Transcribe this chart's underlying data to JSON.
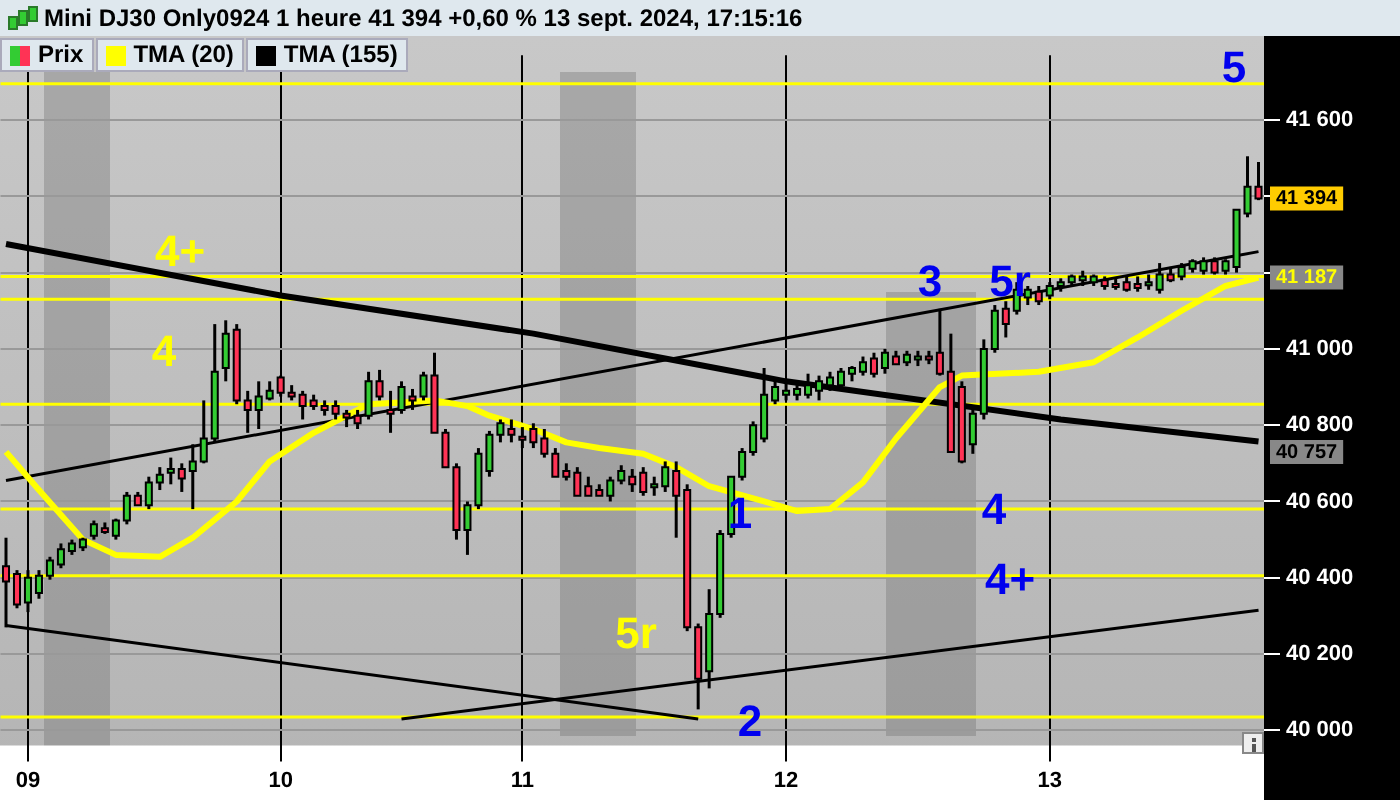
{
  "chart_data": {
    "type": "candlestick",
    "title": "Mini DJ30 Only0924 1 heure 41 394 +0,60 % 13 sept. 2024, 17:15:16",
    "categories": [
      null,
      null,
      "09",
      null,
      null,
      null,
      null,
      null,
      null,
      null,
      null,
      null,
      null,
      null,
      null,
      null,
      null,
      null,
      null,
      null,
      null,
      null,
      null,
      null,
      null,
      "10",
      null,
      null,
      null,
      null,
      null,
      null,
      null,
      null,
      null,
      null,
      null,
      null,
      null,
      null,
      null,
      null,
      null,
      null,
      null,
      null,
      null,
      "11",
      null,
      null,
      null,
      null,
      null,
      null,
      null,
      null,
      null,
      null,
      null,
      null,
      null,
      null,
      null,
      null,
      null,
      null,
      null,
      null,
      null,
      null,
      null,
      "12",
      null,
      null,
      null,
      null,
      null,
      null,
      null,
      null,
      null,
      null,
      null,
      null,
      null,
      null,
      null,
      null,
      null,
      null,
      null,
      null,
      null,
      null,
      null,
      "13",
      null,
      null,
      null,
      null,
      null,
      null,
      null,
      null,
      null,
      null,
      null,
      null,
      null,
      null,
      null,
      null,
      null,
      null,
      null
    ],
    "ylim": [
      39960,
      41770
    ],
    "yticks": [
      {
        "value": 40000,
        "label": "40 000"
      },
      {
        "value": 40200,
        "label": "40 200"
      },
      {
        "value": 40400,
        "label": "40 400"
      },
      {
        "value": 40600,
        "label": "40 600"
      },
      {
        "value": 40800,
        "label": "40 800"
      },
      {
        "value": 41000,
        "label": "41 000"
      },
      {
        "value": 41200,
        "label": null
      },
      {
        "value": 41400,
        "label": null
      },
      {
        "value": 41600,
        "label": "41 600"
      }
    ],
    "grid": true,
    "legend": "top left",
    "series": [
      {
        "name": "Prix",
        "ohlc": [
          [
            40430,
            40505,
            40270,
            40390
          ],
          [
            40410,
            40420,
            40320,
            40330
          ],
          [
            40335,
            40420,
            40310,
            40400
          ],
          [
            40360,
            40420,
            40345,
            40405
          ],
          [
            40405,
            40455,
            40395,
            40445
          ],
          [
            40435,
            40490,
            40425,
            40475
          ],
          [
            40470,
            40500,
            40460,
            40490
          ],
          [
            40480,
            40505,
            40470,
            40500
          ],
          [
            40510,
            40550,
            40500,
            40540
          ],
          [
            40530,
            40545,
            40515,
            40520
          ],
          [
            40510,
            40555,
            40500,
            40550
          ],
          [
            40550,
            40625,
            40540,
            40615
          ],
          [
            40615,
            40625,
            40590,
            40590
          ],
          [
            40590,
            40665,
            40580,
            40650
          ],
          [
            40650,
            40690,
            40630,
            40670
          ],
          [
            40675,
            40715,
            40645,
            40685
          ],
          [
            40685,
            40700,
            40625,
            40660
          ],
          [
            40680,
            40750,
            40580,
            40705
          ],
          [
            40705,
            40865,
            40700,
            40765
          ],
          [
            40765,
            41065,
            40755,
            40940
          ],
          [
            40950,
            41075,
            40915,
            41040
          ],
          [
            41050,
            41065,
            40855,
            40865
          ],
          [
            40865,
            40890,
            40780,
            40840
          ],
          [
            40840,
            40915,
            40790,
            40875
          ],
          [
            40870,
            40915,
            40865,
            40890
          ],
          [
            40925,
            40930,
            40875,
            40885
          ],
          [
            40885,
            40905,
            40865,
            40875
          ],
          [
            40880,
            40890,
            40815,
            40850
          ],
          [
            40865,
            40880,
            40840,
            40850
          ],
          [
            40850,
            40865,
            40825,
            40840
          ],
          [
            40850,
            40865,
            40815,
            40830
          ],
          [
            40830,
            40840,
            40795,
            40820
          ],
          [
            40825,
            40840,
            40790,
            40805
          ],
          [
            40825,
            40940,
            40815,
            40915
          ],
          [
            40915,
            40945,
            40865,
            40875
          ],
          [
            40840,
            40890,
            40780,
            40830
          ],
          [
            40840,
            40915,
            40830,
            40900
          ],
          [
            40875,
            40895,
            40840,
            40865
          ],
          [
            40875,
            40940,
            40865,
            40930
          ],
          [
            40930,
            40990,
            40780,
            40780
          ],
          [
            40780,
            40790,
            40690,
            40690
          ],
          [
            40690,
            40700,
            40500,
            40525
          ],
          [
            40525,
            40600,
            40460,
            40590
          ],
          [
            40590,
            40740,
            40580,
            40725
          ],
          [
            40680,
            40785,
            40665,
            40775
          ],
          [
            40775,
            40815,
            40755,
            40805
          ],
          [
            40790,
            40815,
            40755,
            40775
          ],
          [
            40765,
            40795,
            40740,
            40770
          ],
          [
            40790,
            40805,
            40740,
            40755
          ],
          [
            40765,
            40790,
            40715,
            40725
          ],
          [
            40725,
            40740,
            40665,
            40665
          ],
          [
            40680,
            40700,
            40655,
            40665
          ],
          [
            40675,
            40690,
            40615,
            40615
          ],
          [
            40640,
            40665,
            40615,
            40615
          ],
          [
            40630,
            40645,
            40615,
            40615
          ],
          [
            40615,
            40665,
            40600,
            40655
          ],
          [
            40655,
            40695,
            40645,
            40680
          ],
          [
            40665,
            40685,
            40625,
            40645
          ],
          [
            40675,
            40690,
            40615,
            40625
          ],
          [
            40640,
            40665,
            40615,
            40645
          ],
          [
            40640,
            40705,
            40625,
            40690
          ],
          [
            40680,
            40705,
            40505,
            40615
          ],
          [
            40630,
            40645,
            40260,
            40270
          ],
          [
            40270,
            40280,
            40055,
            40135
          ],
          [
            40155,
            40370,
            40110,
            40305
          ],
          [
            40305,
            40525,
            40295,
            40515
          ],
          [
            40515,
            40665,
            40505,
            40665
          ],
          [
            40665,
            40740,
            40655,
            40730
          ],
          [
            40730,
            40810,
            40720,
            40800
          ],
          [
            40765,
            40950,
            40755,
            40880
          ],
          [
            40865,
            40915,
            40855,
            40900
          ],
          [
            40880,
            40915,
            40865,
            40890
          ],
          [
            40880,
            40905,
            40865,
            40895
          ],
          [
            40880,
            40935,
            40870,
            40905
          ],
          [
            40890,
            40930,
            40865,
            40915
          ],
          [
            40905,
            40940,
            40890,
            40925
          ],
          [
            40905,
            40950,
            40895,
            40940
          ],
          [
            40935,
            40955,
            40915,
            40950
          ],
          [
            40940,
            40980,
            40930,
            40965
          ],
          [
            40975,
            40990,
            40925,
            40935
          ],
          [
            40950,
            41000,
            40935,
            40990
          ],
          [
            40980,
            40995,
            40960,
            40960
          ],
          [
            40965,
            40995,
            40955,
            40985
          ],
          [
            40975,
            40995,
            40955,
            40980
          ],
          [
            40980,
            40995,
            40960,
            40975
          ],
          [
            40990,
            41105,
            40930,
            40935
          ],
          [
            40940,
            41040,
            40730,
            40730
          ],
          [
            40900,
            40915,
            40700,
            40705
          ],
          [
            40750,
            40840,
            40725,
            40830
          ],
          [
            40830,
            41025,
            40815,
            41000
          ],
          [
            41000,
            41115,
            40990,
            41100
          ],
          [
            41105,
            41125,
            41030,
            41065
          ],
          [
            41100,
            41175,
            41090,
            41155
          ],
          [
            41135,
            41165,
            41115,
            41155
          ],
          [
            41150,
            41165,
            41115,
            41125
          ],
          [
            41140,
            41175,
            41130,
            41165
          ],
          [
            41165,
            41185,
            41150,
            41175
          ],
          [
            41175,
            41195,
            41165,
            41190
          ],
          [
            41180,
            41205,
            41165,
            41190
          ],
          [
            41175,
            41195,
            41165,
            41190
          ],
          [
            41180,
            41190,
            41155,
            41165
          ],
          [
            41170,
            41185,
            41155,
            41165
          ],
          [
            41175,
            41190,
            41150,
            41155
          ],
          [
            41170,
            41190,
            41150,
            41160
          ],
          [
            41170,
            41195,
            41155,
            41175
          ],
          [
            41155,
            41225,
            41145,
            41195
          ],
          [
            41195,
            41215,
            41175,
            41180
          ],
          [
            41190,
            41225,
            41180,
            41215
          ],
          [
            41210,
            41235,
            41200,
            41230
          ],
          [
            41205,
            41240,
            41195,
            41230
          ],
          [
            41230,
            41240,
            41195,
            41200
          ],
          [
            41205,
            41235,
            41195,
            41230
          ],
          [
            41215,
            41365,
            41200,
            41365
          ],
          [
            41355,
            41505,
            41345,
            41425
          ],
          [
            41425,
            41490,
            41390,
            41394
          ]
        ],
        "colors": [
          "#ff3355",
          "#ff3355",
          "#33cc33",
          "#33cc33",
          "#33cc33",
          "#33cc33",
          "#33cc33",
          "#33cc33",
          "#33cc33",
          "#ff3355",
          "#33cc33",
          "#33cc33",
          "#ff3355",
          "#33cc33",
          "#33cc33",
          "#33cc33",
          "#ff3355",
          "#33cc33",
          "#33cc33",
          "#33cc33",
          "#33cc33",
          "#ff3355",
          "#ff3355",
          "#33cc33",
          "#33cc33",
          "#ff3355",
          "#ff3355",
          "#ff3355",
          "#ff3355",
          "#ff3355",
          "#ff3355",
          "#ff3355",
          "#ff3355",
          "#33cc33",
          "#ff3355",
          "#ff3355",
          "#33cc33",
          "#ff3355",
          "#33cc33",
          "#ff3355",
          "#ff3355",
          "#ff3355",
          "#33cc33",
          "#33cc33",
          "#33cc33",
          "#33cc33",
          "#ff3355",
          "#ff3355",
          "#ff3355",
          "#ff3355",
          "#ff3355",
          "#ff3355",
          "#ff3355",
          "#ff3355",
          "#ff3355",
          "#33cc33",
          "#33cc33",
          "#ff3355",
          "#ff3355",
          "#33cc33",
          "#33cc33",
          "#ff3355",
          "#ff3355",
          "#ff3355",
          "#33cc33",
          "#33cc33",
          "#33cc33",
          "#33cc33",
          "#33cc33",
          "#33cc33",
          "#33cc33",
          "#33cc33",
          "#33cc33",
          "#33cc33",
          "#33cc33",
          "#33cc33",
          "#33cc33",
          "#33cc33",
          "#33cc33",
          "#ff3355",
          "#33cc33",
          "#ff3355",
          "#33cc33",
          "#33cc33",
          "#ff3355",
          "#ff3355",
          "#ff3355",
          "#ff3355",
          "#33cc33",
          "#33cc33",
          "#33cc33",
          "#ff3355",
          "#33cc33",
          "#33cc33",
          "#ff3355",
          "#33cc33",
          "#33cc33",
          "#33cc33",
          "#33cc33",
          "#33cc33",
          "#ff3355",
          "#ff3355",
          "#ff3355",
          "#ff3355",
          "#33cc33",
          "#33cc33",
          "#ff3355",
          "#33cc33",
          "#33cc33",
          "#33cc33",
          "#ff3355",
          "#33cc33",
          "#33cc33",
          "#33cc33",
          "#ff3355"
        ]
      },
      {
        "name": "TMA (20)",
        "type": "line",
        "color": "#ffff00",
        "values": [
          40730,
          null,
          null,
          40630,
          null,
          null,
          null,
          40500,
          null,
          null,
          40460,
          null,
          null,
          null,
          40455,
          null,
          null,
          40505,
          null,
          null,
          null,
          40600,
          null,
          null,
          40705,
          null,
          null,
          null,
          40780,
          null,
          null,
          null,
          null,
          40855,
          null,
          null,
          null,
          null,
          null,
          40865,
          null,
          null,
          40850,
          null,
          40825,
          null,
          null,
          null,
          40790,
          null,
          null,
          40755,
          null,
          null,
          40740,
          null,
          null,
          null,
          40725,
          null,
          null,
          40690,
          null,
          null,
          40640,
          null,
          null,
          null,
          null,
          40600,
          null,
          null,
          40575,
          null,
          null,
          40580,
          null,
          null,
          40650,
          null,
          null,
          40765,
          null,
          null,
          null,
          40900,
          null,
          40930,
          null,
          null,
          null,
          null,
          null,
          null,
          40940,
          null,
          null,
          null,
          null,
          40965,
          null,
          null,
          null,
          41030,
          null,
          null,
          null,
          41100,
          null,
          null,
          null,
          41165,
          null,
          null,
          41187
        ]
      },
      {
        "name": "TMA (155)",
        "type": "line",
        "color": "#000000",
        "values": [
          41275,
          null,
          null,
          null,
          null,
          null,
          null,
          null,
          null,
          null,
          null,
          null,
          null,
          null,
          null,
          null,
          null,
          null,
          null,
          null,
          null,
          null,
          null,
          null,
          null,
          41140,
          null,
          null,
          null,
          null,
          null,
          null,
          null,
          null,
          null,
          null,
          null,
          null,
          null,
          null,
          null,
          null,
          null,
          null,
          null,
          null,
          null,
          null,
          41040,
          null,
          null,
          null,
          null,
          null,
          null,
          null,
          null,
          null,
          null,
          null,
          null,
          null,
          null,
          null,
          null,
          null,
          null,
          null,
          null,
          null,
          null,
          40915,
          null,
          null,
          null,
          null,
          null,
          null,
          null,
          null,
          null,
          null,
          null,
          null,
          null,
          null,
          null,
          null,
          null,
          null,
          null,
          null,
          null,
          null,
          null,
          null,
          40815,
          null,
          null,
          null,
          null,
          null,
          null,
          null,
          null,
          null,
          null,
          null,
          null,
          null,
          null,
          null,
          null,
          null,
          40757
        ]
      },
      {
        "type": "line",
        "color": "#000000",
        "values": [
          40655,
          null,
          null,
          null,
          null,
          null,
          null,
          null,
          null,
          null,
          null,
          null,
          null,
          null,
          null,
          null,
          null,
          null,
          null,
          null,
          null,
          null,
          null,
          null,
          null,
          null,
          null,
          null,
          null,
          null,
          null,
          null,
          null,
          null,
          null,
          null,
          null,
          null,
          null,
          null,
          null,
          null,
          null,
          null,
          null,
          null,
          null,
          null,
          null,
          null,
          null,
          null,
          null,
          null,
          null,
          null,
          null,
          null,
          null,
          null,
          null,
          null,
          null,
          null,
          null,
          null,
          null,
          null,
          null,
          null,
          null,
          null,
          null,
          null,
          null,
          null,
          null,
          null,
          null,
          null,
          null,
          null,
          null,
          null,
          null,
          null,
          null,
          null,
          null,
          null,
          null,
          null,
          null,
          null,
          null,
          null,
          null,
          null,
          null,
          null,
          null,
          null,
          null,
          null,
          null,
          null,
          null,
          null,
          null,
          null,
          null,
          null,
          null,
          null,
          41255
        ]
      },
      {
        "type": "line",
        "color": "#000000",
        "values": [
          null,
          null,
          null,
          null,
          null,
          null,
          null,
          null,
          null,
          null,
          null,
          null,
          null,
          null,
          null,
          null,
          null,
          null,
          null,
          null,
          null,
          null,
          null,
          null,
          null,
          null,
          null,
          null,
          null,
          null,
          null,
          null,
          null,
          null,
          null,
          null,
          40030,
          null,
          null,
          null,
          null,
          null,
          null,
          null,
          null,
          null,
          null,
          null,
          null,
          null,
          null,
          null,
          null,
          null,
          null,
          null,
          null,
          null,
          null,
          null,
          null,
          null,
          null,
          null,
          null,
          null,
          null,
          null,
          null,
          null,
          null,
          null,
          null,
          null,
          null,
          null,
          null,
          null,
          null,
          null,
          null,
          null,
          null,
          null,
          null,
          null,
          null,
          null,
          null,
          null,
          null,
          null,
          null,
          null,
          null,
          null,
          null,
          null,
          null,
          null,
          null,
          null,
          null,
          null,
          null,
          null,
          null,
          null,
          null,
          null,
          null,
          null,
          null,
          null,
          40315
        ]
      },
      {
        "type": "line",
        "color": "#000000",
        "values": [
          40275,
          null,
          null,
          null,
          null,
          null,
          null,
          null,
          null,
          null,
          null,
          null,
          null,
          null,
          null,
          null,
          null,
          null,
          null,
          null,
          null,
          null,
          null,
          null,
          null,
          null,
          null,
          null,
          null,
          null,
          null,
          null,
          null,
          null,
          null,
          null,
          null,
          null,
          null,
          null,
          null,
          null,
          null,
          null,
          null,
          null,
          null,
          null,
          null,
          null,
          null,
          null,
          null,
          null,
          null,
          null,
          null,
          null,
          null,
          null,
          null,
          null,
          null,
          40030,
          null,
          null,
          null,
          null,
          null,
          null,
          null,
          null,
          null,
          null,
          null,
          null,
          null,
          null,
          null,
          null,
          null,
          null,
          null,
          null,
          null,
          null,
          null,
          null,
          null,
          null,
          null,
          null,
          null,
          null,
          null,
          null,
          null,
          null,
          null,
          null,
          null,
          null,
          null,
          null,
          null,
          null,
          null,
          null,
          null,
          null,
          null,
          null,
          null,
          null,
          null
        ]
      }
    ],
    "ref_lines": [
      {
        "axis": "y",
        "value": 41695,
        "color": "#ffff00"
      },
      {
        "axis": "y",
        "value": 41190,
        "color": "#ffff00"
      },
      {
        "axis": "y",
        "value": 41130,
        "color": "#ffff00"
      },
      {
        "axis": "y",
        "value": 40855,
        "color": "#ffff00"
      },
      {
        "axis": "y",
        "value": 40580,
        "color": "#ffff00"
      },
      {
        "axis": "y",
        "value": 40405,
        "color": "#ffff00"
      },
      {
        "axis": "y",
        "value": 40035,
        "color": "#ffff00"
      }
    ],
    "annotations": [
      "4+",
      "4",
      "5r",
      "5",
      "3",
      "5r",
      "1",
      "2",
      "4",
      "4+",
      "40 757",
      {
        "text": "41 394",
        "y": 41394
      },
      {
        "text": "41 187",
        "y": 41187
      }
    ]
  }
}
